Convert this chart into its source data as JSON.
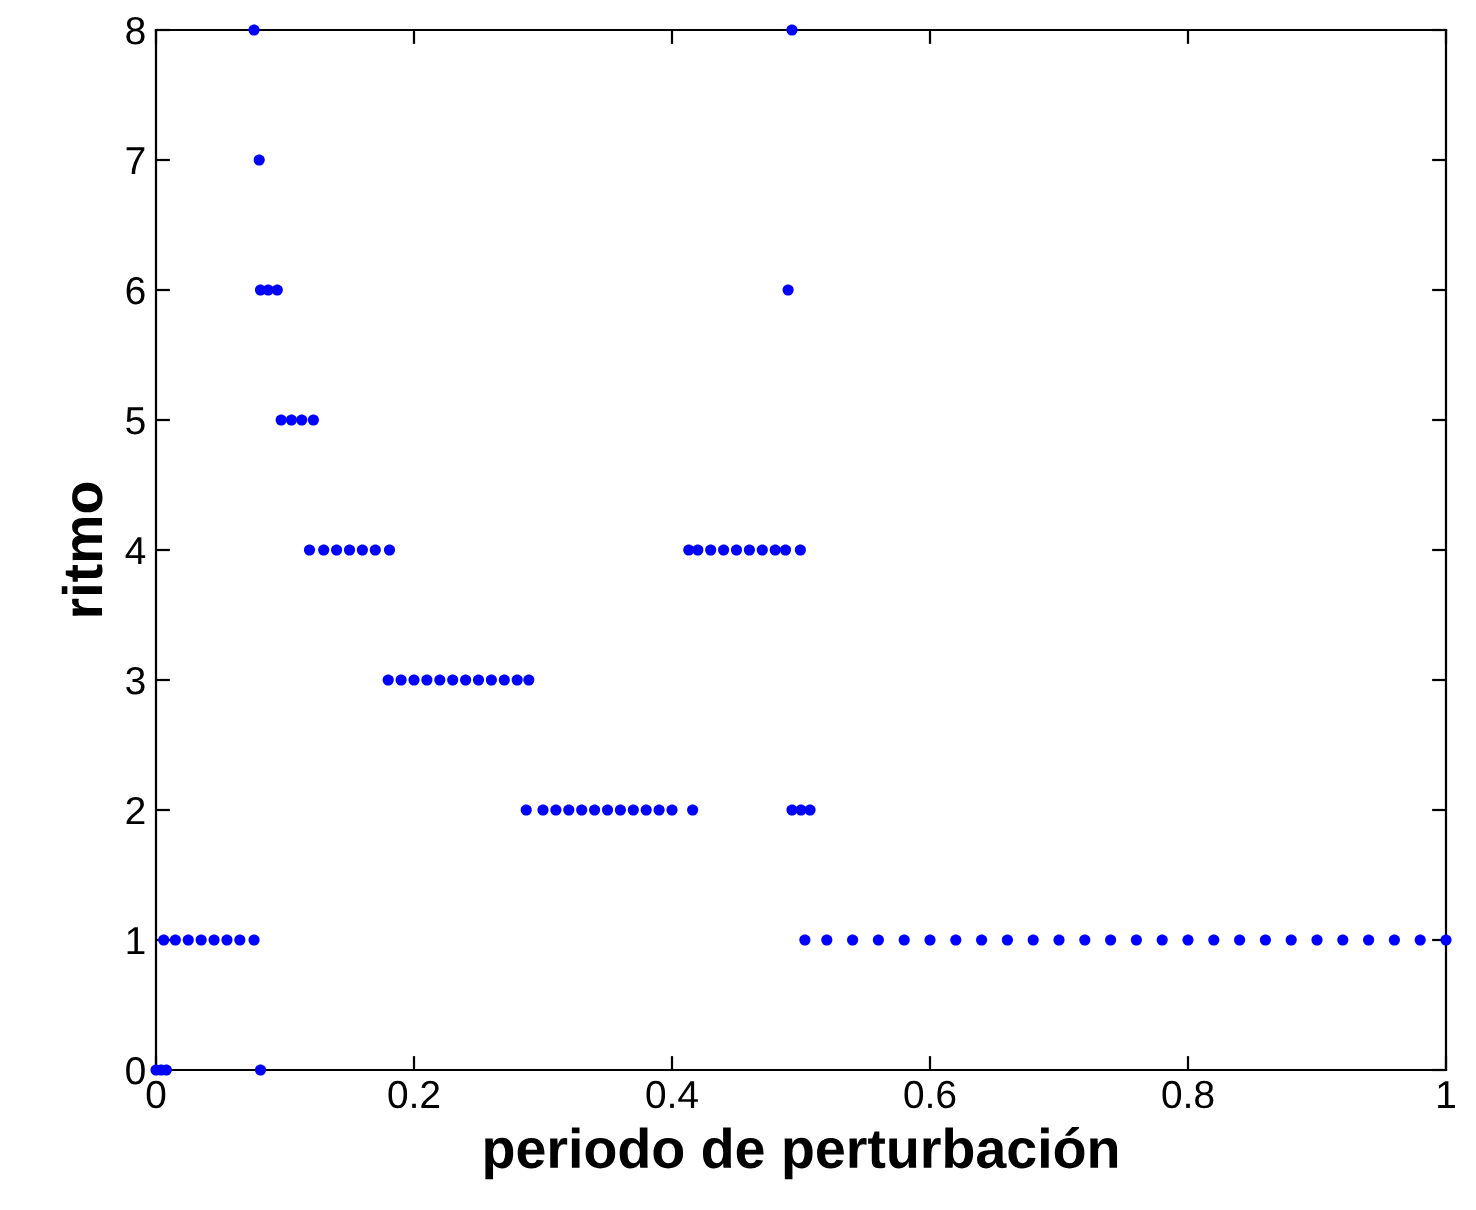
{
  "chart_data": {
    "type": "scatter",
    "xlabel": "periodo de perturbación",
    "ylabel": "ritmo",
    "x": [
      0,
      0.004,
      0.008,
      0.081,
      0.006,
      0.015,
      0.025,
      0.035,
      0.045,
      0.055,
      0.065,
      0.076,
      0.076,
      0.08,
      0.081,
      0.087,
      0.094,
      0.097,
      0.105,
      0.113,
      0.122,
      0.119,
      0.13,
      0.14,
      0.15,
      0.16,
      0.17,
      0.181,
      0.18,
      0.19,
      0.2,
      0.21,
      0.22,
      0.23,
      0.24,
      0.25,
      0.26,
      0.27,
      0.28,
      0.289,
      0.287,
      0.3,
      0.31,
      0.32,
      0.33,
      0.34,
      0.35,
      0.36,
      0.37,
      0.38,
      0.39,
      0.4,
      0.416,
      0.413,
      0.42,
      0.43,
      0.44,
      0.45,
      0.46,
      0.47,
      0.48,
      0.488,
      0.4995,
      0.493,
      0.49,
      0.493,
      0.5,
      0.507,
      0.503,
      0.52,
      0.54,
      0.56,
      0.58,
      0.6,
      0.62,
      0.64,
      0.66,
      0.68,
      0.7,
      0.72,
      0.74,
      0.76,
      0.78,
      0.8,
      0.82,
      0.84,
      0.86,
      0.88,
      0.9,
      0.92,
      0.94,
      0.96,
      0.98,
      1.0
    ],
    "values": [
      0,
      0,
      0,
      0,
      1,
      1,
      1,
      1,
      1,
      1,
      1,
      1,
      8,
      7,
      6,
      6,
      6,
      5,
      5,
      5,
      5,
      4,
      4,
      4,
      4,
      4,
      4,
      4,
      3,
      3,
      3,
      3,
      3,
      3,
      3,
      3,
      3,
      3,
      3,
      3,
      2,
      2,
      2,
      2,
      2,
      2,
      2,
      2,
      2,
      2,
      2,
      2,
      2,
      4,
      4,
      4,
      4,
      4,
      4,
      4,
      4,
      4,
      4,
      8,
      6,
      2,
      2,
      2,
      1,
      1,
      1,
      1,
      1,
      1,
      1,
      1,
      1,
      1,
      1,
      1,
      1,
      1,
      1,
      1,
      1,
      1,
      1,
      1,
      1,
      1,
      1,
      1,
      1,
      1
    ],
    "color": "#0000ff",
    "marker": "circle",
    "xlim": [
      0,
      1
    ],
    "xticks": [
      0,
      0.2,
      0.4,
      0.6,
      0.8,
      1
    ],
    "ylim": [
      0,
      8
    ],
    "yticks": [
      0,
      1,
      2,
      3,
      4,
      5,
      6,
      7,
      8
    ],
    "grid": false,
    "legend": false
  }
}
